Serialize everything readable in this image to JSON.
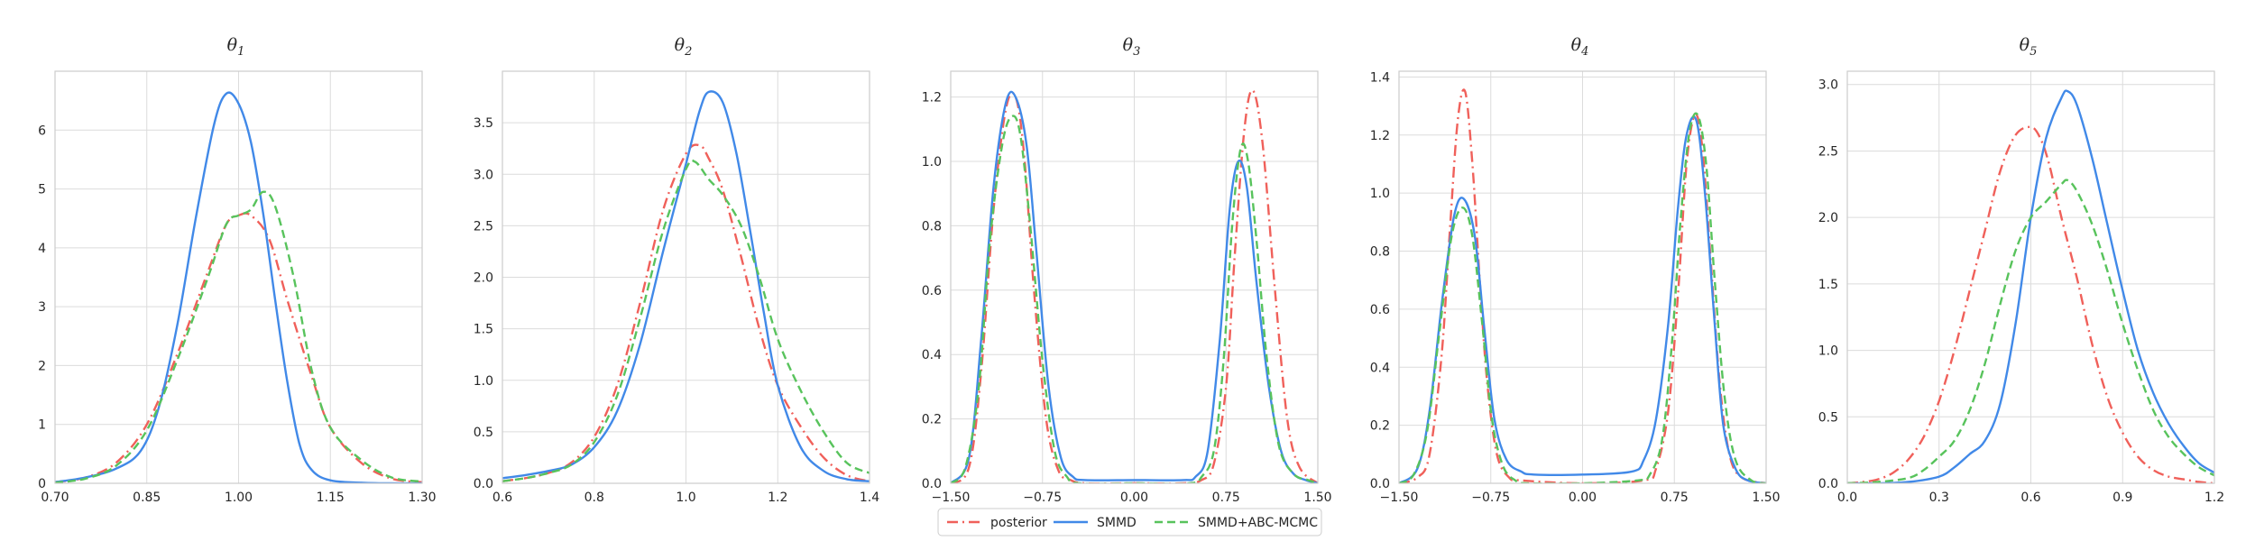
{
  "figure": {
    "legend_position": "bottom-center",
    "grid": true,
    "series_styles": [
      {
        "name": "posterior",
        "color": "#f0605a",
        "dash": "dash-dot"
      },
      {
        "name": "SMMD",
        "color": "#4189e8",
        "dash": "solid"
      },
      {
        "name": "SMMD+ABC-MCMC",
        "color": "#58c35c",
        "dash": "dashed"
      }
    ]
  },
  "chart_data": [
    {
      "type": "line",
      "title": "θ",
      "title_sub": "1",
      "xlim": [
        0.7,
        1.3
      ],
      "ylim": [
        0,
        7.0
      ],
      "xticks": [
        "0.70",
        "0.85",
        "1.00",
        "1.15",
        "1.30"
      ],
      "yticks": [
        "0",
        "1",
        "2",
        "3",
        "4",
        "5",
        "6"
      ],
      "series": [
        {
          "name": "posterior",
          "x": [
            0.7,
            0.75,
            0.8,
            0.85,
            0.9,
            0.95,
            0.98,
            1.0,
            1.02,
            1.05,
            1.08,
            1.12,
            1.15,
            1.2,
            1.25,
            1.3
          ],
          "y": [
            0.02,
            0.1,
            0.35,
            1.0,
            2.2,
            3.6,
            4.4,
            4.55,
            4.55,
            4.15,
            3.1,
            1.8,
            0.95,
            0.35,
            0.08,
            0.02
          ]
        },
        {
          "name": "SMMD",
          "x": [
            0.7,
            0.75,
            0.8,
            0.84,
            0.87,
            0.9,
            0.93,
            0.96,
            0.98,
            1.0,
            1.02,
            1.04,
            1.06,
            1.08,
            1.1,
            1.12,
            1.15,
            1.2,
            1.25,
            1.3
          ],
          "y": [
            0.02,
            0.1,
            0.25,
            0.55,
            1.3,
            2.7,
            4.5,
            6.1,
            6.62,
            6.45,
            5.8,
            4.6,
            3.1,
            1.7,
            0.65,
            0.22,
            0.05,
            0.01,
            0.0,
            0.0
          ]
        },
        {
          "name": "SMMD+ABC-MCMC",
          "x": [
            0.7,
            0.75,
            0.8,
            0.85,
            0.9,
            0.95,
            0.98,
            1.0,
            1.02,
            1.04,
            1.06,
            1.09,
            1.12,
            1.15,
            1.2,
            1.25,
            1.3
          ],
          "y": [
            0.01,
            0.08,
            0.3,
            0.9,
            2.1,
            3.5,
            4.4,
            4.55,
            4.65,
            4.95,
            4.7,
            3.5,
            1.9,
            0.95,
            0.4,
            0.1,
            0.03
          ]
        }
      ]
    },
    {
      "type": "line",
      "title": "θ",
      "title_sub": "2",
      "xlim": [
        0.6,
        1.4
      ],
      "ylim": [
        0,
        4.0
      ],
      "xticks": [
        "0.6",
        "0.8",
        "1.0",
        "1.2",
        "1.4"
      ],
      "yticks": [
        "0.0",
        "0.5",
        "1.0",
        "1.5",
        "2.0",
        "2.5",
        "3.0",
        "3.5"
      ],
      "series": [
        {
          "name": "posterior",
          "x": [
            0.6,
            0.65,
            0.7,
            0.75,
            0.8,
            0.85,
            0.9,
            0.95,
            1.0,
            1.03,
            1.05,
            1.08,
            1.12,
            1.16,
            1.2,
            1.25,
            1.3,
            1.35,
            1.4
          ],
          "y": [
            0.02,
            0.05,
            0.1,
            0.2,
            0.45,
            0.95,
            1.75,
            2.65,
            3.2,
            3.28,
            3.15,
            2.85,
            2.2,
            1.5,
            0.95,
            0.55,
            0.25,
            0.08,
            0.02
          ]
        },
        {
          "name": "SMMD",
          "x": [
            0.6,
            0.65,
            0.7,
            0.75,
            0.8,
            0.85,
            0.9,
            0.95,
            1.0,
            1.03,
            1.05,
            1.08,
            1.11,
            1.14,
            1.17,
            1.2,
            1.25,
            1.3,
            1.35,
            1.4
          ],
          "y": [
            0.05,
            0.08,
            0.12,
            0.18,
            0.35,
            0.7,
            1.35,
            2.25,
            3.1,
            3.62,
            3.8,
            3.7,
            3.2,
            2.45,
            1.65,
            0.95,
            0.35,
            0.12,
            0.04,
            0.02
          ]
        },
        {
          "name": "SMMD+ABC-MCMC",
          "x": [
            0.6,
            0.65,
            0.7,
            0.75,
            0.8,
            0.85,
            0.9,
            0.95,
            1.0,
            1.02,
            1.05,
            1.08,
            1.12,
            1.16,
            1.2,
            1.25,
            1.3,
            1.35,
            1.4
          ],
          "y": [
            0.02,
            0.05,
            0.1,
            0.18,
            0.4,
            0.85,
            1.6,
            2.45,
            3.05,
            3.12,
            2.95,
            2.8,
            2.5,
            2.0,
            1.4,
            0.9,
            0.5,
            0.2,
            0.1
          ]
        }
      ]
    },
    {
      "type": "line",
      "title": "θ",
      "title_sub": "3",
      "xlim": [
        -1.5,
        1.5
      ],
      "ylim": [
        0,
        1.28
      ],
      "xticks": [
        "−1.50",
        "−0.75",
        "0.00",
        "0.75",
        "1.50"
      ],
      "yticks": [
        "0.0",
        "0.2",
        "0.4",
        "0.6",
        "0.8",
        "1.0",
        "1.2"
      ],
      "series": [
        {
          "name": "posterior",
          "x": [
            -1.5,
            -1.35,
            -1.25,
            -1.15,
            -1.05,
            -0.97,
            -0.9,
            -0.82,
            -0.72,
            -0.62,
            -0.52,
            -0.4,
            0.0,
            0.4,
            0.55,
            0.65,
            0.75,
            0.82,
            0.9,
            0.97,
            1.05,
            1.15,
            1.25,
            1.35,
            1.5
          ],
          "y": [
            0.0,
            0.05,
            0.35,
            0.85,
            1.16,
            1.2,
            1.02,
            0.6,
            0.2,
            0.04,
            0.01,
            0.0,
            0.0,
            0.0,
            0.01,
            0.06,
            0.3,
            0.7,
            1.1,
            1.22,
            1.05,
            0.6,
            0.2,
            0.05,
            0.0
          ]
        },
        {
          "name": "SMMD",
          "x": [
            -1.5,
            -1.35,
            -1.25,
            -1.15,
            -1.05,
            -0.97,
            -0.88,
            -0.8,
            -0.7,
            -0.6,
            -0.5,
            -0.4,
            0.0,
            0.4,
            0.5,
            0.6,
            0.7,
            0.78,
            0.85,
            0.92,
            1.0,
            1.1,
            1.2,
            1.3,
            1.4,
            1.5
          ],
          "y": [
            0.0,
            0.08,
            0.45,
            0.92,
            1.18,
            1.2,
            1.05,
            0.72,
            0.3,
            0.08,
            0.02,
            0.01,
            0.01,
            0.01,
            0.02,
            0.1,
            0.45,
            0.85,
            1.0,
            0.92,
            0.62,
            0.3,
            0.1,
            0.03,
            0.01,
            0.0
          ]
        },
        {
          "name": "SMMD+ABC-MCMC",
          "x": [
            -1.5,
            -1.38,
            -1.27,
            -1.18,
            -1.08,
            -1.0,
            -0.93,
            -0.85,
            -0.75,
            -0.65,
            -0.55,
            -0.45,
            0.0,
            0.45,
            0.55,
            0.65,
            0.73,
            0.8,
            0.87,
            0.93,
            1.0,
            1.08,
            1.18,
            1.3,
            1.42,
            1.5
          ],
          "y": [
            0.0,
            0.05,
            0.3,
            0.75,
            1.05,
            1.14,
            1.08,
            0.8,
            0.38,
            0.1,
            0.02,
            0.0,
            0.0,
            0.0,
            0.02,
            0.1,
            0.38,
            0.8,
            1.04,
            1.0,
            0.75,
            0.4,
            0.12,
            0.03,
            0.01,
            0.0
          ]
        }
      ]
    },
    {
      "type": "line",
      "title": "θ",
      "title_sub": "4",
      "xlim": [
        -1.5,
        1.5
      ],
      "ylim": [
        0,
        1.42
      ],
      "xticks": [
        "−1.50",
        "−0.75",
        "0.00",
        "0.75",
        "1.50"
      ],
      "yticks": [
        "0.0",
        "0.2",
        "0.4",
        "0.6",
        "0.8",
        "1.0",
        "1.2",
        "1.4"
      ],
      "series": [
        {
          "name": "posterior",
          "x": [
            -1.5,
            -1.35,
            -1.25,
            -1.15,
            -1.08,
            -1.02,
            -0.96,
            -0.9,
            -0.84,
            -0.78,
            -0.7,
            -0.6,
            -0.5,
            0.0,
            0.5,
            0.6,
            0.7,
            0.78,
            0.85,
            0.92,
            0.98,
            1.05,
            1.12,
            1.2,
            1.3,
            1.5
          ],
          "y": [
            0.0,
            0.02,
            0.1,
            0.45,
            0.9,
            1.25,
            1.35,
            1.1,
            0.7,
            0.35,
            0.1,
            0.02,
            0.01,
            0.0,
            0.01,
            0.05,
            0.25,
            0.65,
            1.1,
            1.27,
            1.15,
            0.75,
            0.35,
            0.1,
            0.02,
            0.0
          ]
        },
        {
          "name": "SMMD",
          "x": [
            -1.5,
            -1.35,
            -1.25,
            -1.15,
            -1.05,
            -0.97,
            -0.88,
            -0.8,
            -0.72,
            -0.62,
            -0.5,
            -0.4,
            0.0,
            0.4,
            0.5,
            0.6,
            0.7,
            0.78,
            0.85,
            0.93,
            1.0,
            1.08,
            1.15,
            1.25,
            1.35,
            1.5
          ],
          "y": [
            0.0,
            0.05,
            0.25,
            0.62,
            0.92,
            0.98,
            0.85,
            0.52,
            0.22,
            0.08,
            0.04,
            0.03,
            0.03,
            0.04,
            0.08,
            0.22,
            0.55,
            0.95,
            1.2,
            1.25,
            1.0,
            0.55,
            0.2,
            0.05,
            0.01,
            0.0
          ]
        },
        {
          "name": "SMMD+ABC-MCMC",
          "x": [
            -1.5,
            -1.38,
            -1.27,
            -1.17,
            -1.07,
            -0.98,
            -0.9,
            -0.82,
            -0.74,
            -0.65,
            -0.55,
            -0.45,
            0.0,
            0.45,
            0.55,
            0.65,
            0.73,
            0.8,
            0.87,
            0.94,
            1.01,
            1.08,
            1.16,
            1.25,
            1.38,
            1.5
          ],
          "y": [
            0.0,
            0.03,
            0.18,
            0.52,
            0.85,
            0.95,
            0.85,
            0.55,
            0.22,
            0.06,
            0.01,
            0.0,
            0.0,
            0.01,
            0.03,
            0.15,
            0.48,
            0.9,
            1.2,
            1.27,
            1.1,
            0.7,
            0.3,
            0.08,
            0.01,
            0.0
          ]
        }
      ]
    },
    {
      "type": "line",
      "title": "θ",
      "title_sub": "5",
      "xlim": [
        0.0,
        1.2
      ],
      "ylim": [
        0,
        3.1
      ],
      "xticks": [
        "0.0",
        "0.3",
        "0.6",
        "0.9",
        "1.2"
      ],
      "yticks": [
        "0.0",
        "0.5",
        "1.0",
        "1.5",
        "2.0",
        "2.5",
        "3.0"
      ],
      "series": [
        {
          "name": "posterior",
          "x": [
            0.0,
            0.05,
            0.1,
            0.15,
            0.2,
            0.25,
            0.3,
            0.35,
            0.4,
            0.45,
            0.5,
            0.55,
            0.6,
            0.63,
            0.66,
            0.7,
            0.75,
            0.8,
            0.85,
            0.9,
            0.95,
            1.0,
            1.05,
            1.1,
            1.15,
            1.2
          ],
          "y": [
            0.0,
            0.01,
            0.03,
            0.08,
            0.18,
            0.35,
            0.62,
            1.0,
            1.45,
            1.9,
            2.35,
            2.62,
            2.68,
            2.6,
            2.4,
            2.0,
            1.55,
            1.05,
            0.65,
            0.38,
            0.2,
            0.1,
            0.05,
            0.03,
            0.01,
            0.0
          ]
        },
        {
          "name": "SMMD",
          "x": [
            0.0,
            0.1,
            0.2,
            0.3,
            0.35,
            0.4,
            0.45,
            0.5,
            0.55,
            0.6,
            0.65,
            0.7,
            0.72,
            0.75,
            0.8,
            0.85,
            0.9,
            0.95,
            1.0,
            1.05,
            1.1,
            1.15,
            1.2
          ],
          "y": [
            0.0,
            0.0,
            0.01,
            0.05,
            0.12,
            0.22,
            0.32,
            0.6,
            1.2,
            2.0,
            2.6,
            2.9,
            2.95,
            2.85,
            2.45,
            1.95,
            1.45,
            1.0,
            0.68,
            0.45,
            0.28,
            0.15,
            0.08
          ]
        },
        {
          "name": "SMMD+ABC-MCMC",
          "x": [
            0.0,
            0.1,
            0.2,
            0.25,
            0.3,
            0.35,
            0.4,
            0.45,
            0.5,
            0.55,
            0.6,
            0.65,
            0.7,
            0.72,
            0.75,
            0.8,
            0.85,
            0.9,
            0.95,
            1.0,
            1.05,
            1.1,
            1.15,
            1.2
          ],
          "y": [
            0.0,
            0.01,
            0.04,
            0.1,
            0.2,
            0.32,
            0.55,
            0.9,
            1.35,
            1.75,
            2.0,
            2.12,
            2.25,
            2.28,
            2.2,
            1.95,
            1.6,
            1.2,
            0.85,
            0.55,
            0.35,
            0.22,
            0.12,
            0.06
          ]
        }
      ]
    }
  ]
}
